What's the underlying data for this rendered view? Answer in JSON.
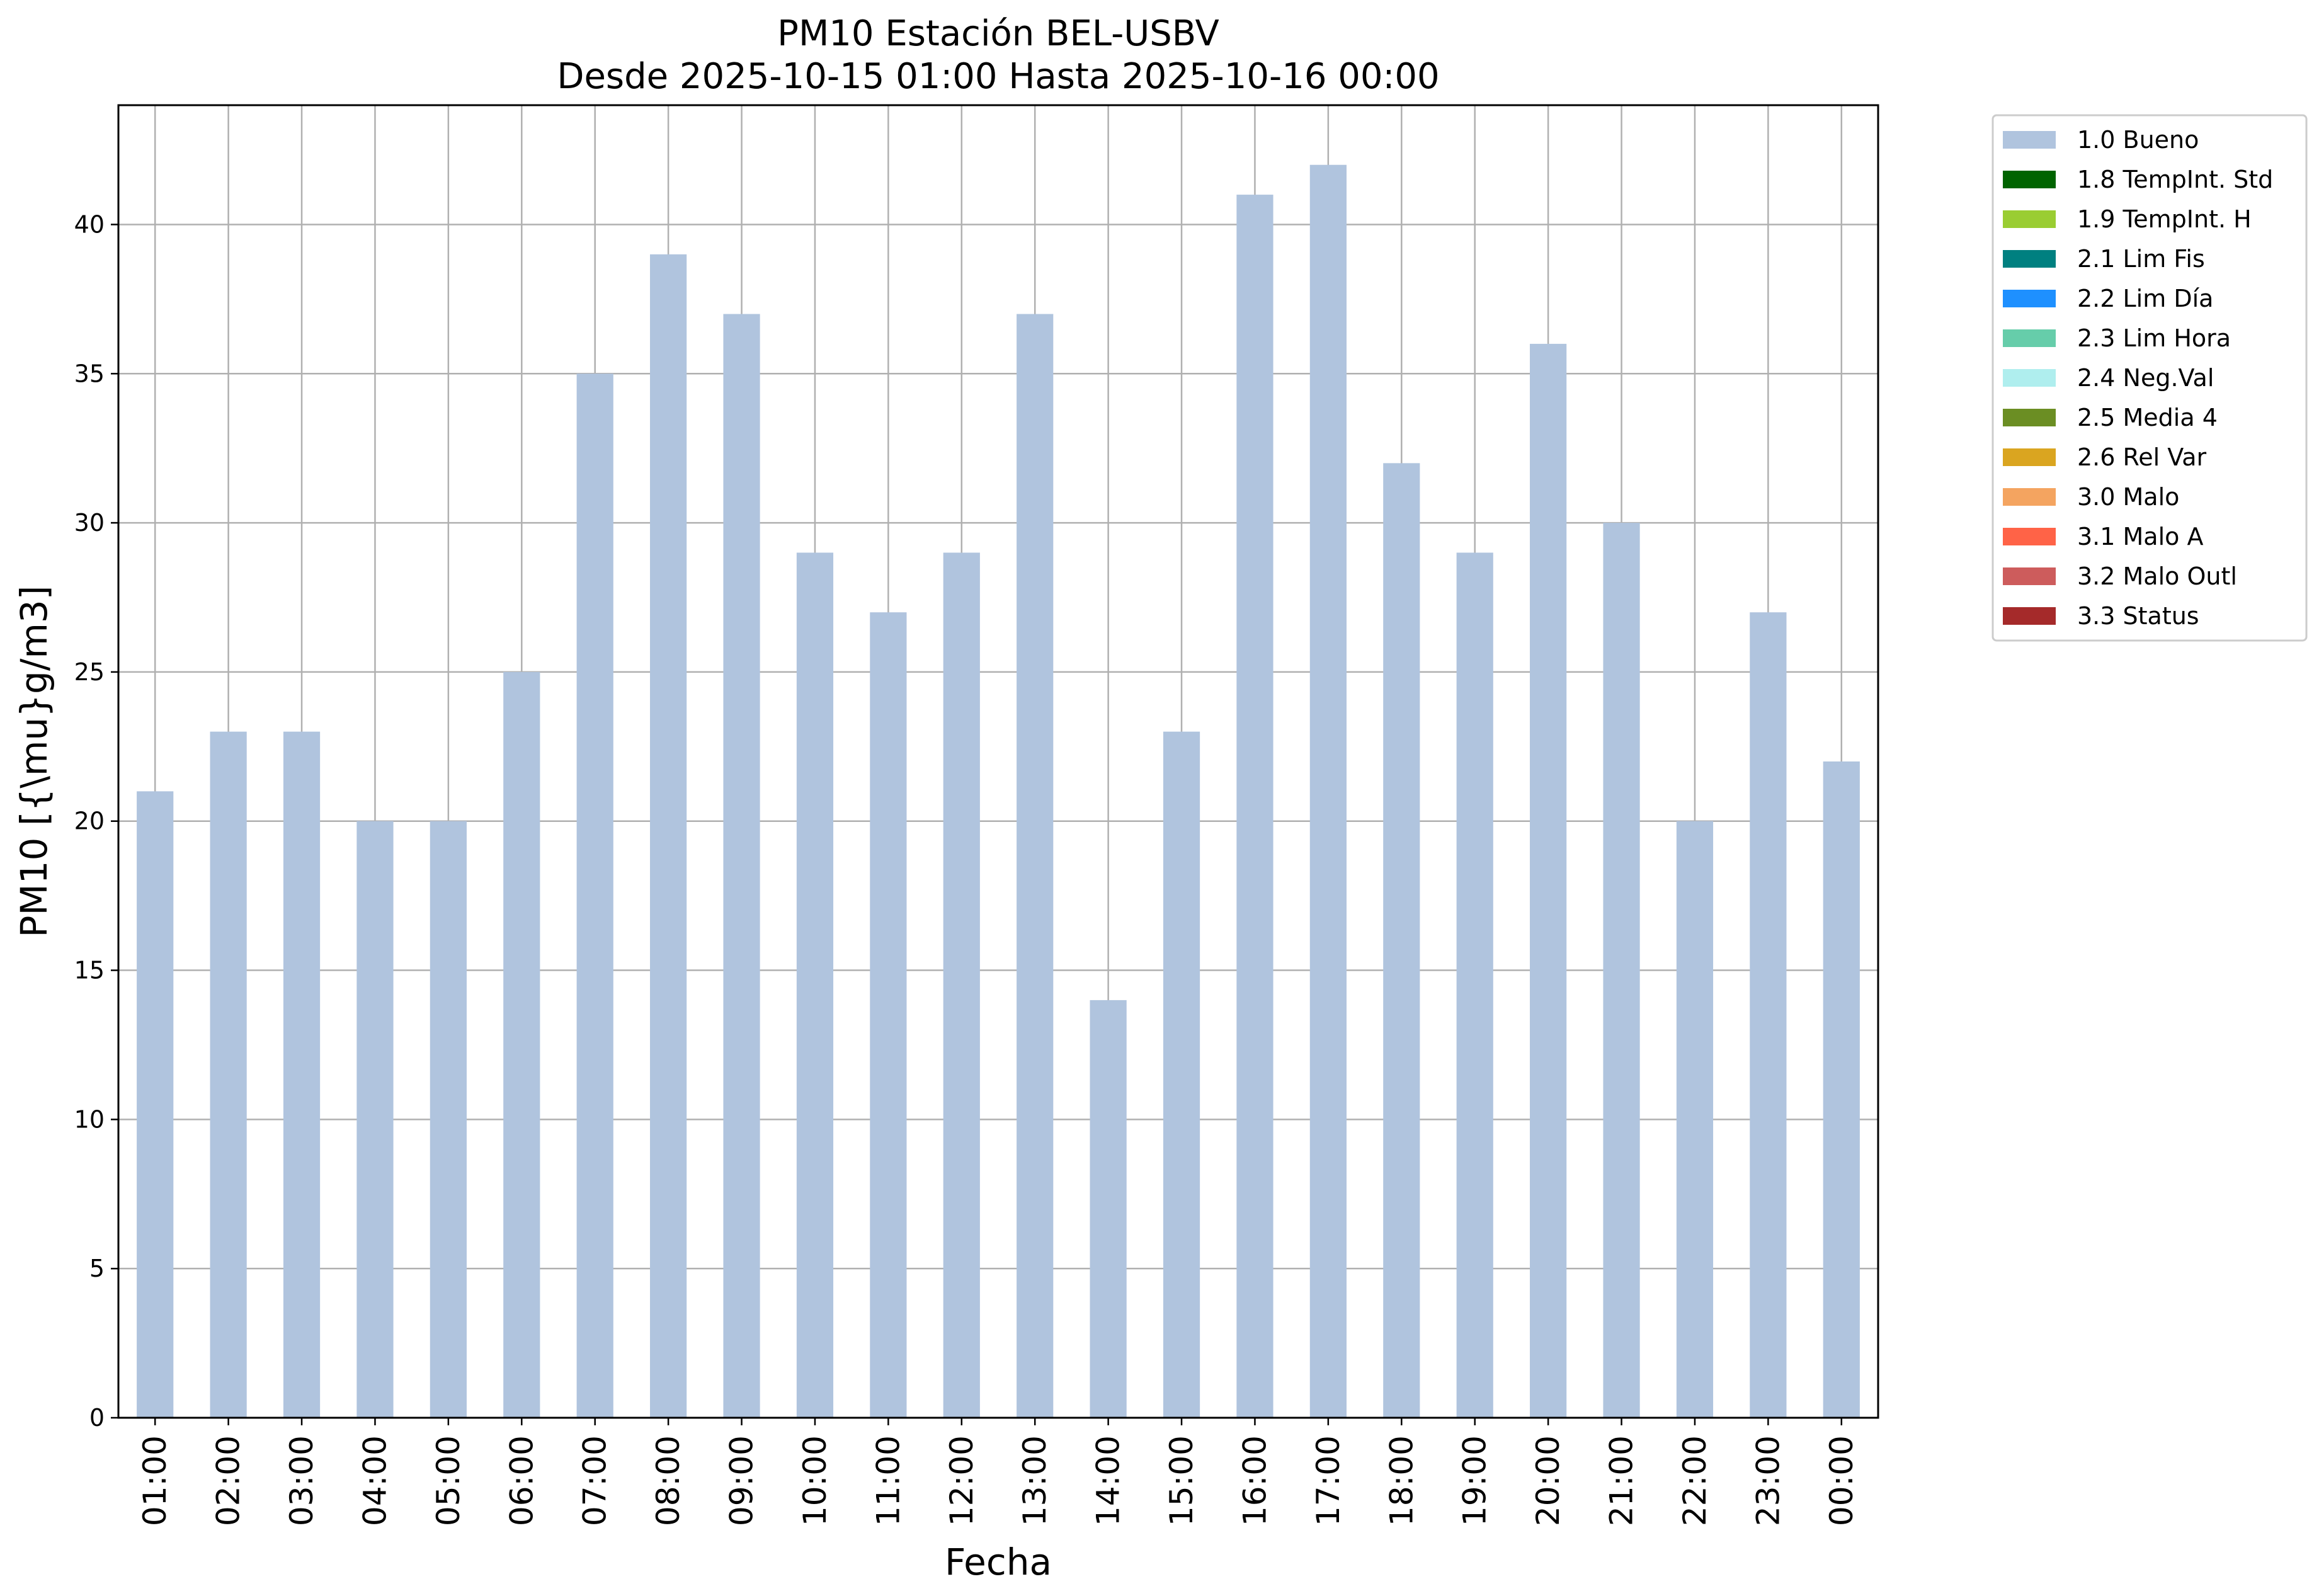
{
  "chart_data": {
    "type": "bar",
    "title": "PM10 Estación BEL-USBV",
    "subtitle": "Desde 2025-10-15 01:00 Hasta 2025-10-16 00:00",
    "xlabel": "Fecha",
    "ylabel": "PM10 [{\\mu}g/m3]",
    "ylim": [
      0,
      44
    ],
    "yticks": [
      "0",
      "5",
      "10",
      "15",
      "20",
      "25",
      "30",
      "35",
      "40"
    ],
    "grid": true,
    "legend_position": "outside right, top",
    "categories": [
      "01:00",
      "02:00",
      "03:00",
      "04:00",
      "05:00",
      "06:00",
      "07:00",
      "08:00",
      "09:00",
      "10:00",
      "11:00",
      "12:00",
      "13:00",
      "14:00",
      "15:00",
      "16:00",
      "17:00",
      "18:00",
      "19:00",
      "20:00",
      "21:00",
      "22:00",
      "23:00",
      "00:00"
    ],
    "series": [
      {
        "name": "1.0 Bueno",
        "color": "#b0c4de",
        "values": [
          21,
          23,
          23,
          20,
          20,
          25,
          35,
          39,
          37,
          29,
          27,
          29,
          37,
          14,
          23,
          41,
          42,
          32,
          29,
          36,
          30,
          20,
          27,
          22
        ]
      }
    ],
    "legend": [
      {
        "label": "1.0 Bueno",
        "color": "#b0c4de"
      },
      {
        "label": "1.8 TempInt. Std",
        "color": "#006400"
      },
      {
        "label": "1.9 TempInt. H",
        "color": "#9acd32"
      },
      {
        "label": "2.1 Lim Fis",
        "color": "#008080"
      },
      {
        "label": "2.2 Lim Día",
        "color": "#1e90ff"
      },
      {
        "label": "2.3 Lim Hora",
        "color": "#66cdaa"
      },
      {
        "label": "2.4 Neg.Val",
        "color": "#afeeee"
      },
      {
        "label": "2.5 Media 4",
        "color": "#6b8e23"
      },
      {
        "label": "2.6 Rel Var",
        "color": "#daa520"
      },
      {
        "label": "3.0 Malo",
        "color": "#f4a460"
      },
      {
        "label": "3.1 Malo A",
        "color": "#ff6347"
      },
      {
        "label": "3.2 Malo Outl",
        "color": "#cd5c5c"
      },
      {
        "label": "3.3 Status",
        "color": "#a52a2a"
      }
    ]
  }
}
